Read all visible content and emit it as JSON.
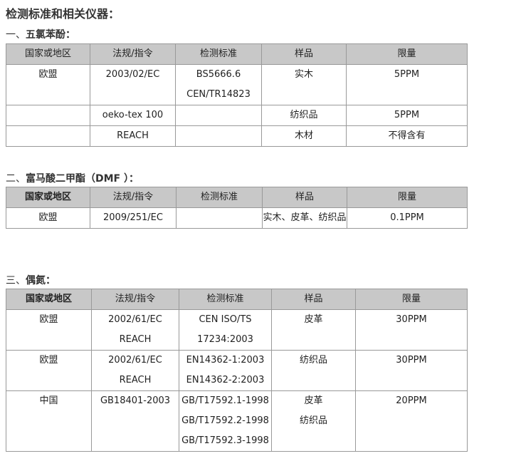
{
  "title": "检测标准和相关仪器：",
  "sections": [
    {
      "num": "一、",
      "name": "五氯苯酚：",
      "headers": [
        "国家或地区",
        "法规/指令",
        "检测标准",
        "样品",
        "限量"
      ],
      "rows": [
        [
          "欧盟",
          "2003/02/EC",
          "BS5666.6\nCEN/TR14823",
          "实木",
          "5PPM"
        ],
        [
          "",
          "oeko-tex 100",
          "",
          "纺织品",
          "5PPM"
        ],
        [
          "",
          "REACH",
          "",
          "木材",
          "不得含有"
        ]
      ]
    },
    {
      "num": "二、",
      "name": "富马酸二甲酯（DMF ）：",
      "headers": [
        "国家或地区",
        "法规/指令",
        "检测标准",
        "样品",
        "限量"
      ],
      "rows": [
        [
          "欧盟",
          "2009/251/EC",
          "",
          "实木、皮革、纺织品",
          "0.1PPM"
        ]
      ]
    },
    {
      "num": "三、",
      "name": "偶氮：",
      "headers": [
        "国家或地区",
        "法规/指令",
        "检测标准",
        "样品",
        "限量"
      ],
      "rows": [
        [
          "欧盟",
          "2002/61/EC\nREACH",
          "CEN ISO/TS\n17234:2003",
          "皮革",
          "30PPM"
        ],
        [
          "欧盟",
          "2002/61/EC\nREACH",
          "EN14362-1:2003\nEN14362-2:2003",
          "纺织品",
          "30PPM"
        ],
        [
          "中国",
          "GB18401-2003",
          "GB/T17592.1-1998\nGB/T17592.2-1998\nGB/T17592.3-1998",
          "皮革\n纺织品",
          "20PPM"
        ]
      ]
    }
  ]
}
